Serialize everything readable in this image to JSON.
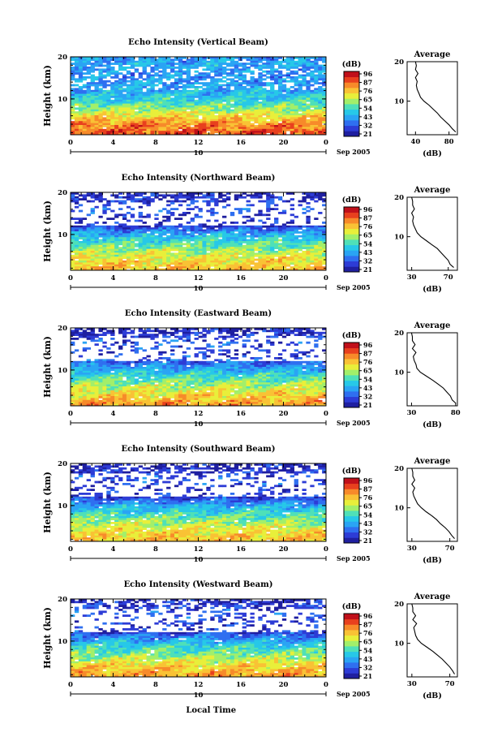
{
  "colors": {
    "colormap": [
      "#1f1fa0",
      "#2d3cd6",
      "#2f6ff0",
      "#2aa4f4",
      "#27c8e8",
      "#4fe0b8",
      "#a2ef6a",
      "#e8ef3a",
      "#f9c235",
      "#f78a2a",
      "#e8401e",
      "#c0101a"
    ],
    "panel_bg": "#ffffff",
    "frame": "#000000"
  },
  "common": {
    "ylabel": "Height (km)",
    "xticks": [
      "0",
      "4",
      "8",
      "12",
      "16",
      "20",
      "0"
    ],
    "date_day": "10",
    "date_month": "Sep 2005",
    "colorbar_unit": "(dB)",
    "colorbar_ticks": [
      "96",
      "87",
      "76",
      "65",
      "54",
      "43",
      "32",
      "21"
    ],
    "yticks": [
      "20",
      "10"
    ],
    "avg_title": "Average",
    "avg_unit": "(dB)",
    "xlabel": "Local Time"
  },
  "chart_data": [
    {
      "type": "heatmap",
      "title": "Echo Intensity (Vertical Beam)",
      "ylabel": "Height (km)",
      "xlabel": "Local Time",
      "x_range_hours": [
        0,
        24
      ],
      "y_range_km": [
        1.5,
        20
      ],
      "color_range_db": [
        21,
        96
      ],
      "colorbar_ticks": [
        96,
        87,
        76,
        65,
        54,
        43,
        32,
        21
      ],
      "profile": {
        "heights_km": [
          2,
          4,
          6,
          8,
          10,
          12,
          14,
          16,
          18,
          20
        ],
        "intensity_db": [
          85,
          80,
          70,
          60,
          50,
          45,
          42,
          40,
          45,
          40
        ]
      },
      "average": {
        "title": "Average",
        "xlabel": "(dB)",
        "xticks": [
          "40",
          "80"
        ],
        "xlim": [
          30,
          90
        ],
        "ylim": [
          1.5,
          20
        ],
        "heights_km": [
          2.2,
          3,
          4,
          5,
          6,
          7,
          8,
          9,
          10,
          11,
          12,
          13,
          14,
          15,
          16,
          17,
          18,
          19,
          20
        ],
        "values_db": [
          88,
          84,
          80,
          75,
          70,
          66,
          61,
          56,
          50,
          46,
          44,
          42,
          41,
          42,
          40,
          43,
          40,
          41,
          40
        ]
      }
    },
    {
      "type": "heatmap",
      "title": "Echo Intensity (Northward Beam)",
      "ylabel": "Height (km)",
      "xlabel": "Local Time",
      "x_range_hours": [
        0,
        24
      ],
      "y_range_km": [
        1.5,
        20
      ],
      "color_range_db": [
        21,
        96
      ],
      "colorbar_ticks": [
        96,
        87,
        76,
        65,
        54,
        43,
        32,
        21
      ],
      "profile": {
        "heights_km": [
          2,
          4,
          6,
          8,
          10,
          12,
          14,
          16,
          18,
          20
        ],
        "intensity_db": [
          74,
          70,
          63,
          55,
          45,
          30,
          28,
          35,
          30,
          26
        ]
      },
      "average": {
        "title": "Average",
        "xlabel": "(dB)",
        "xticks": [
          "30",
          "70"
        ],
        "xlim": [
          25,
          80
        ],
        "ylim": [
          1.5,
          20
        ],
        "heights_km": [
          2.2,
          3,
          4,
          5,
          6,
          7,
          8,
          9,
          10,
          11,
          12,
          13,
          14,
          15,
          16,
          17,
          18,
          19,
          20
        ],
        "values_db": [
          76,
          72,
          70,
          66,
          62,
          58,
          52,
          46,
          40,
          36,
          34,
          32,
          31,
          32,
          30,
          33,
          31,
          31,
          30
        ]
      }
    },
    {
      "type": "heatmap",
      "title": "Echo Intensity (Eastward Beam)",
      "ylabel": "Height (km)",
      "xlabel": "Local Time",
      "x_range_hours": [
        0,
        24
      ],
      "y_range_km": [
        1.5,
        20
      ],
      "color_range_db": [
        21,
        96
      ],
      "colorbar_ticks": [
        96,
        87,
        76,
        65,
        54,
        43,
        32,
        21
      ],
      "profile": {
        "heights_km": [
          2,
          4,
          6,
          8,
          10,
          12,
          14,
          16,
          18,
          20
        ],
        "intensity_db": [
          78,
          72,
          64,
          56,
          45,
          35,
          30,
          34,
          30,
          26
        ]
      },
      "average": {
        "title": "Average",
        "xlabel": "(dB)",
        "xticks": [
          "30",
          "80"
        ],
        "xlim": [
          25,
          82
        ],
        "ylim": [
          1.5,
          20
        ],
        "heights_km": [
          2.2,
          3,
          4,
          5,
          6,
          7,
          8,
          9,
          10,
          11,
          12,
          13,
          14,
          15,
          16,
          17,
          18,
          19,
          20
        ],
        "values_db": [
          80,
          76,
          74,
          70,
          66,
          60,
          54,
          47,
          40,
          36,
          35,
          33,
          32,
          35,
          31,
          34,
          31,
          31,
          30
        ]
      }
    },
    {
      "type": "heatmap",
      "title": "Echo Intensity (Southward Beam)",
      "ylabel": "Height (km)",
      "xlabel": "Local Time",
      "x_range_hours": [
        0,
        24
      ],
      "y_range_km": [
        1.5,
        20
      ],
      "color_range_db": [
        21,
        96
      ],
      "colorbar_ticks": [
        96,
        87,
        76,
        65,
        54,
        43,
        32,
        21
      ],
      "profile": {
        "heights_km": [
          2,
          4,
          6,
          8,
          10,
          12,
          14,
          16,
          18,
          20
        ],
        "intensity_db": [
          74,
          70,
          62,
          54,
          44,
          30,
          28,
          34,
          28,
          26
        ]
      },
      "average": {
        "title": "Average",
        "xlabel": "(dB)",
        "xticks": [
          "30",
          "70"
        ],
        "xlim": [
          25,
          78
        ],
        "ylim": [
          1.5,
          20
        ],
        "heights_km": [
          2.2,
          3,
          4,
          5,
          6,
          7,
          8,
          9,
          10,
          11,
          12,
          13,
          14,
          15,
          16,
          17,
          18,
          19,
          20
        ],
        "values_db": [
          75,
          72,
          69,
          65,
          60,
          56,
          51,
          45,
          40,
          36,
          34,
          32,
          31,
          33,
          30,
          33,
          31,
          31,
          30
        ]
      }
    },
    {
      "type": "heatmap",
      "title": "Echo Intensity (Westward Beam)",
      "ylabel": "Height (km)",
      "xlabel": "Local Time",
      "x_range_hours": [
        0,
        24
      ],
      "y_range_km": [
        1.5,
        20
      ],
      "color_range_db": [
        21,
        96
      ],
      "colorbar_ticks": [
        96,
        87,
        76,
        65,
        54,
        43,
        32,
        21
      ],
      "profile": {
        "heights_km": [
          2,
          4,
          6,
          8,
          10,
          12,
          14,
          16,
          18,
          20
        ],
        "intensity_db": [
          78,
          72,
          63,
          55,
          45,
          32,
          29,
          35,
          30,
          26
        ]
      },
      "average": {
        "title": "Average",
        "xlabel": "(dB)",
        "xticks": [
          "30",
          "70"
        ],
        "xlim": [
          25,
          78
        ],
        "ylim": [
          1.5,
          20
        ],
        "heights_km": [
          2.2,
          3,
          4,
          5,
          6,
          7,
          8,
          9,
          10,
          11,
          12,
          13,
          14,
          15,
          16,
          17,
          18,
          19,
          20
        ],
        "values_db": [
          75,
          73,
          70,
          66,
          62,
          57,
          52,
          46,
          40,
          36,
          34,
          33,
          32,
          35,
          31,
          34,
          31,
          31,
          30
        ]
      }
    }
  ]
}
